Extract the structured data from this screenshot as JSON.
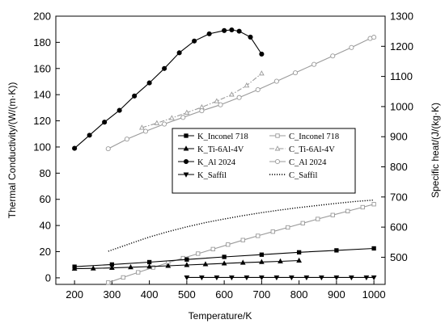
{
  "chart_data": {
    "type": "line",
    "xlabel": "Temperature/K",
    "ylabel_left": "Thermal Conductivity/(W/(m·K))",
    "ylabel_right": "Specific heat/(J/(kg·K)",
    "xlim": [
      150,
      1030
    ],
    "ylim_left": [
      -5,
      200
    ],
    "ylim_right": [
      410,
      1300
    ],
    "x_ticks": [
      "200",
      "300",
      "400",
      "500",
      "600",
      "700",
      "800",
      "900",
      "1000"
    ],
    "y_left_ticks": [
      "0",
      "20",
      "40",
      "60",
      "80",
      "100",
      "120",
      "140",
      "160",
      "180",
      "200"
    ],
    "y_right_ticks": [
      "400",
      "500",
      "600",
      "700",
      "800",
      "900",
      "1000",
      "1100",
      "1200",
      "1300"
    ],
    "grid": false,
    "legend_position": "center-right",
    "series": [
      {
        "name": "K_Inconel 718",
        "axis": "left",
        "marker": "square",
        "filled": true,
        "line": "solid",
        "color": "#000000",
        "x": [
          200,
          300,
          400,
          500,
          600,
          700,
          800,
          900,
          1000
        ],
        "y": [
          8.5,
          10.2,
          12.0,
          14.0,
          16.0,
          17.7,
          19.5,
          21.0,
          22.5
        ]
      },
      {
        "name": "K_Ti-6Al-4V",
        "axis": "left",
        "marker": "triangle-up",
        "filled": true,
        "line": "solid",
        "color": "#000000",
        "x": [
          200,
          250,
          300,
          350,
          400,
          450,
          500,
          550,
          600,
          650,
          700,
          750,
          800
        ],
        "y": [
          7.0,
          7.2,
          7.6,
          8.1,
          8.6,
          9.2,
          9.8,
          10.4,
          11.0,
          11.6,
          12.1,
          12.6,
          13.2
        ]
      },
      {
        "name": "K_Al 2024",
        "axis": "left",
        "marker": "circle",
        "filled": true,
        "line": "solid",
        "color": "#000000",
        "x": [
          200,
          240,
          280,
          320,
          360,
          400,
          440,
          480,
          520,
          560,
          600,
          620,
          640,
          670,
          700
        ],
        "y": [
          99,
          109,
          119,
          128,
          139,
          149,
          160,
          172,
          181,
          186.5,
          189,
          189.5,
          188.5,
          184,
          171
        ]
      },
      {
        "name": "K_Saffil",
        "axis": "left",
        "marker": "triangle-down",
        "filled": true,
        "line": "solid",
        "color": "#000000",
        "x": [
          500,
          540,
          580,
          620,
          660,
          700,
          740,
          780,
          820,
          860,
          900,
          940,
          980,
          1000
        ],
        "y": [
          0.3,
          0.3,
          0.3,
          0.3,
          0.3,
          0.3,
          0.3,
          0.3,
          0.3,
          0.3,
          0.3,
          0.3,
          0.3,
          0.3
        ]
      },
      {
        "name": "C_Inconel 718",
        "axis": "right",
        "marker": "square",
        "filled": false,
        "line": "solid",
        "color": "#9a9a9a",
        "x": [
          290,
          330,
          370,
          410,
          450,
          490,
          530,
          570,
          610,
          650,
          690,
          730,
          770,
          810,
          850,
          890,
          930,
          970,
          1000
        ],
        "y": [
          416,
          433,
          450,
          466,
          482,
          497,
          512,
          527,
          542,
          557,
          571,
          585,
          599,
          613,
          627,
          640,
          653,
          666,
          676
        ]
      },
      {
        "name": "C_Ti-6Al-4V",
        "axis": "right",
        "marker": "triangle-up",
        "filled": false,
        "line": "dash-dot",
        "color": "#9a9a9a",
        "x": [
          380,
          420,
          460,
          500,
          540,
          580,
          620,
          660,
          700
        ],
        "y": [
          930,
          945,
          962,
          980,
          998,
          1018,
          1040,
          1070,
          1110
        ]
      },
      {
        "name": "C_Al 2024",
        "axis": "right",
        "marker": "circle",
        "filled": false,
        "line": "solid",
        "color": "#9a9a9a",
        "x": [
          290,
          340,
          390,
          440,
          490,
          540,
          590,
          640,
          690,
          740,
          790,
          840,
          890,
          940,
          990,
          1000
        ],
        "y": [
          860,
          892,
          918,
          942,
          964,
          986,
          1006,
          1030,
          1056,
          1084,
          1112,
          1140,
          1168,
          1196,
          1226,
          1230
        ]
      },
      {
        "name": "C_Saffil",
        "axis": "right",
        "marker": "none",
        "filled": false,
        "line": "dotted",
        "color": "#000000",
        "x": [
          290,
          350,
          400,
          450,
          500,
          550,
          600,
          650,
          700,
          750,
          800,
          850,
          900,
          950,
          1000
        ],
        "y": [
          520,
          546,
          567,
          585,
          601,
          615,
          627,
          638,
          648,
          657,
          665,
          672,
          679,
          685,
          690
        ]
      }
    ]
  }
}
